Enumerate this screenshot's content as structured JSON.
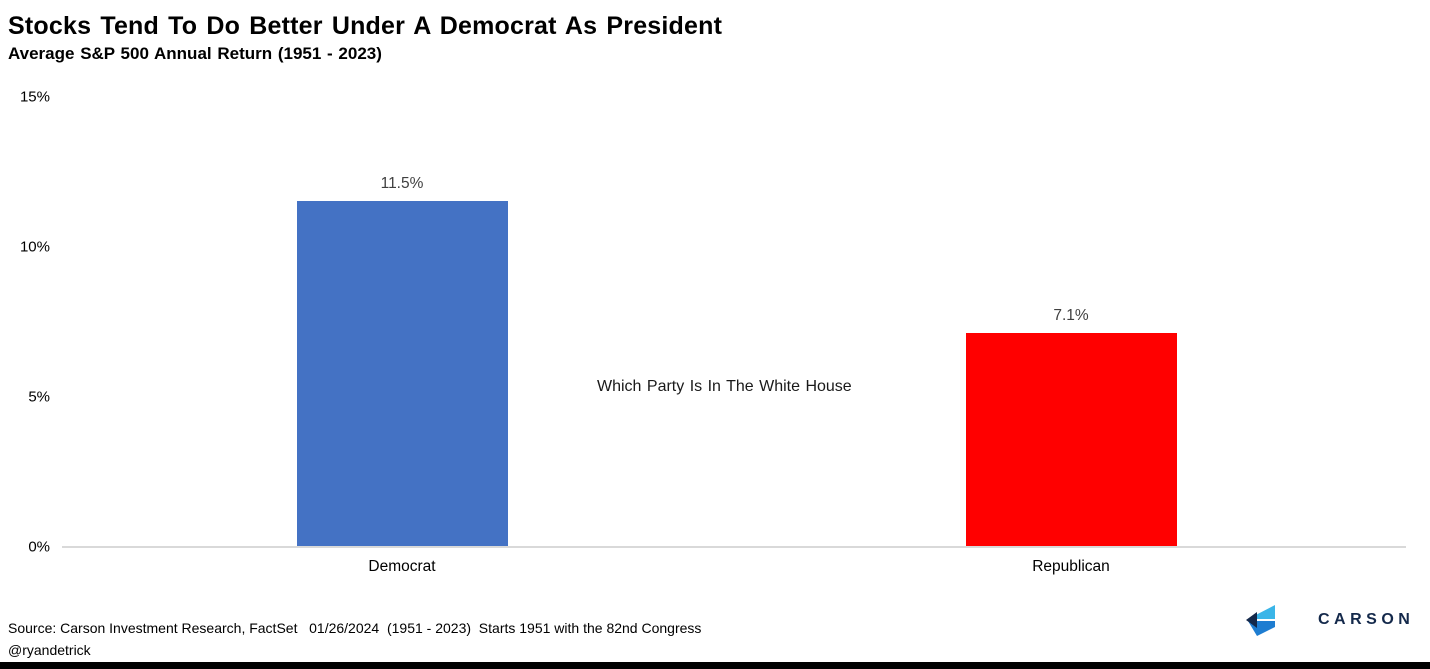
{
  "header": {
    "title": "Stocks Tend To Do Better Under A Democrat As President",
    "subtitle": "Average S&P 500 Annual Return (1951 - 2023)"
  },
  "chart_data": {
    "type": "bar",
    "categories": [
      "Democrat",
      "Republican"
    ],
    "values": [
      11.5,
      7.1
    ],
    "value_labels": [
      "11.5%",
      "7.1%"
    ],
    "bar_colors": [
      "#4472C4",
      "#FF0000"
    ],
    "title": "Stocks Tend To Do Better Under A Democrat As President",
    "subtitle": "Average S&P 500 Annual Return (1951 - 2023)",
    "xlabel": "",
    "ylabel": "",
    "ylim": [
      0,
      15
    ],
    "ytick_values": [
      0,
      5,
      10,
      15
    ],
    "ytick_labels": [
      "0%",
      "5%",
      "10%",
      "15%"
    ],
    "grid": false,
    "legend": "none",
    "annotation": "Which Party Is In The White House"
  },
  "footer": {
    "source": "Source: Carson Investment Research, FactSet   01/26/2024  (1951 - 2023)  Starts 1951 with the 82nd Congress",
    "handle": "@ryandetrick",
    "logo_text": "CARSON"
  },
  "colors": {
    "democrat_bar": "#4472C4",
    "republican_bar": "#FF0000",
    "axis_line": "#D9D9D9",
    "value_label_text": "#404040",
    "logo_navy": "#14294B",
    "logo_light_blue": "#3AB5E8",
    "logo_mid_blue": "#1E7DD1",
    "bottom_bar": "#000000"
  }
}
